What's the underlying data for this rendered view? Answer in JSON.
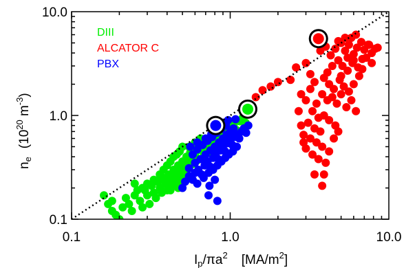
{
  "chart_data": {
    "type": "scatter",
    "x_scale": "log",
    "y_scale": "log",
    "xlim": [
      0.1,
      10.0
    ],
    "ylim": [
      0.1,
      10.0
    ],
    "x_ticks": [
      {
        "value": 0.1,
        "label": "0.1"
      },
      {
        "value": 1.0,
        "label": "1.0"
      },
      {
        "value": 10.0,
        "label": "10.0"
      }
    ],
    "y_ticks": [
      {
        "value": 0.1,
        "label": "0.1"
      },
      {
        "value": 1.0,
        "label": "1.0"
      },
      {
        "value": 10.0,
        "label": "10.0"
      }
    ],
    "xlabel": {
      "base": "I",
      "sub": "p",
      "mid": "/πa",
      "sup": "2",
      "unit_open": "[MA/m",
      "unit_sup": "2",
      "unit_close": "]"
    },
    "ylabel": {
      "base": "n",
      "sub": "e",
      "unit_open": "(10",
      "unit_sup1": "20",
      "unit_mid": " m",
      "unit_sup2": "-3",
      "unit_close": ")"
    },
    "legend_placement": "top-left",
    "reference_line": {
      "style": "dotted",
      "x": [
        0.1,
        10.0
      ],
      "y": [
        0.1,
        10.0
      ]
    },
    "series": [
      {
        "name": "DIII",
        "color": "#00ee00",
        "points": [
          [
            0.16,
            0.17
          ],
          [
            0.17,
            0.14
          ],
          [
            0.18,
            0.12
          ],
          [
            0.19,
            0.11
          ],
          [
            0.2,
            0.1
          ],
          [
            0.18,
            0.15
          ],
          [
            0.21,
            0.13
          ],
          [
            0.22,
            0.16
          ],
          [
            0.23,
            0.14
          ],
          [
            0.24,
            0.12
          ],
          [
            0.25,
            0.17
          ],
          [
            0.27,
            0.15
          ],
          [
            0.28,
            0.13
          ],
          [
            0.29,
            0.19
          ],
          [
            0.3,
            0.17
          ],
          [
            0.31,
            0.14
          ],
          [
            0.32,
            0.21
          ],
          [
            0.33,
            0.18
          ],
          [
            0.34,
            0.16
          ],
          [
            0.35,
            0.23
          ],
          [
            0.36,
            0.2
          ],
          [
            0.37,
            0.18
          ],
          [
            0.38,
            0.25
          ],
          [
            0.39,
            0.22
          ],
          [
            0.4,
            0.19
          ],
          [
            0.41,
            0.27
          ],
          [
            0.42,
            0.24
          ],
          [
            0.43,
            0.21
          ],
          [
            0.44,
            0.3
          ],
          [
            0.45,
            0.26
          ],
          [
            0.46,
            0.23
          ],
          [
            0.47,
            0.33
          ],
          [
            0.48,
            0.29
          ],
          [
            0.49,
            0.25
          ],
          [
            0.5,
            0.36
          ],
          [
            0.51,
            0.32
          ],
          [
            0.52,
            0.28
          ],
          [
            0.53,
            0.4
          ],
          [
            0.54,
            0.35
          ],
          [
            0.55,
            0.31
          ],
          [
            0.56,
            0.44
          ],
          [
            0.57,
            0.38
          ],
          [
            0.58,
            0.34
          ],
          [
            0.59,
            0.48
          ],
          [
            0.6,
            0.42
          ],
          [
            0.62,
            0.37
          ],
          [
            0.64,
            0.52
          ],
          [
            0.66,
            0.46
          ],
          [
            0.68,
            0.4
          ],
          [
            0.7,
            0.56
          ],
          [
            0.72,
            0.5
          ],
          [
            0.74,
            0.44
          ],
          [
            0.76,
            0.6
          ],
          [
            0.78,
            0.54
          ],
          [
            0.8,
            0.48
          ],
          [
            0.82,
            0.65
          ],
          [
            0.84,
            0.58
          ],
          [
            0.86,
            0.52
          ],
          [
            0.88,
            0.7
          ],
          [
            0.9,
            0.63
          ],
          [
            0.92,
            0.57
          ],
          [
            0.95,
            0.75
          ],
          [
            0.98,
            0.68
          ],
          [
            1.0,
            0.6
          ],
          [
            1.05,
            0.8
          ],
          [
            1.1,
            0.72
          ],
          [
            1.15,
            0.88
          ],
          [
            1.2,
            0.95
          ],
          [
            1.25,
            0.85
          ],
          [
            0.36,
            0.27
          ],
          [
            0.38,
            0.3
          ],
          [
            0.4,
            0.33
          ],
          [
            0.42,
            0.36
          ],
          [
            0.44,
            0.4
          ],
          [
            0.46,
            0.42
          ],
          [
            0.48,
            0.45
          ],
          [
            0.5,
            0.5
          ],
          [
            0.45,
            0.21
          ],
          [
            0.42,
            0.19
          ],
          [
            0.47,
            0.2
          ],
          [
            0.5,
            0.22
          ],
          [
            0.53,
            0.24
          ],
          [
            0.33,
            0.24
          ],
          [
            0.3,
            0.22
          ],
          [
            0.28,
            0.2
          ],
          [
            0.26,
            0.19
          ],
          [
            0.25,
            0.22
          ],
          [
            0.55,
            0.5
          ],
          [
            0.6,
            0.55
          ],
          [
            0.65,
            0.6
          ]
        ],
        "highlight": [
          1.29,
          1.15
        ]
      },
      {
        "name": "ALCATOR C",
        "color": "#ff0000",
        "points": [
          [
            3.7,
            4.2
          ],
          [
            4.0,
            4.6
          ],
          [
            4.3,
            3.8
          ],
          [
            4.6,
            4.4
          ],
          [
            5.0,
            5.0
          ],
          [
            5.3,
            4.2
          ],
          [
            5.6,
            4.8
          ],
          [
            6.0,
            3.9
          ],
          [
            6.3,
            4.5
          ],
          [
            6.7,
            5.1
          ],
          [
            7.0,
            4.3
          ],
          [
            7.4,
            4.8
          ],
          [
            7.8,
            4.0
          ],
          [
            8.2,
            4.4
          ],
          [
            5.8,
            5.6
          ],
          [
            6.2,
            6.0
          ],
          [
            4.8,
            3.4
          ],
          [
            5.1,
            3.0
          ],
          [
            5.5,
            2.7
          ],
          [
            5.9,
            3.2
          ],
          [
            6.4,
            2.9
          ],
          [
            6.8,
            3.5
          ],
          [
            4.4,
            3.0
          ],
          [
            4.1,
            2.6
          ],
          [
            3.9,
            2.3
          ],
          [
            4.2,
            2.0
          ],
          [
            4.5,
            1.8
          ],
          [
            4.9,
            2.2
          ],
          [
            5.2,
            1.9
          ],
          [
            5.6,
            1.7
          ],
          [
            6.0,
            2.0
          ],
          [
            6.5,
            2.4
          ],
          [
            3.8,
            1.6
          ],
          [
            4.1,
            1.4
          ],
          [
            4.4,
            1.5
          ],
          [
            4.7,
            1.3
          ],
          [
            5.0,
            1.6
          ],
          [
            5.4,
            1.2
          ],
          [
            5.8,
            1.4
          ],
          [
            6.2,
            1.1
          ],
          [
            3.5,
            1.3
          ],
          [
            3.3,
            1.1
          ],
          [
            3.6,
            0.95
          ],
          [
            3.9,
            1.0
          ],
          [
            4.2,
            0.9
          ],
          [
            4.6,
            0.8
          ],
          [
            3.1,
            0.85
          ],
          [
            3.4,
            0.75
          ],
          [
            3.7,
            0.7
          ],
          [
            2.9,
            0.65
          ],
          [
            3.2,
            0.6
          ],
          [
            3.5,
            0.55
          ],
          [
            3.8,
            0.5
          ],
          [
            4.2,
            0.45
          ],
          [
            3.0,
            0.48
          ],
          [
            3.3,
            0.42
          ],
          [
            3.6,
            0.38
          ],
          [
            4.0,
            0.35
          ],
          [
            2.8,
            0.8
          ],
          [
            2.7,
            1.1
          ],
          [
            3.0,
            1.4
          ],
          [
            2.9,
            0.55
          ],
          [
            4.5,
            0.6
          ],
          [
            4.8,
            0.7
          ],
          [
            3.4,
            0.27
          ],
          [
            3.9,
            0.27
          ],
          [
            3.8,
            0.21
          ],
          [
            2.4,
            2.2
          ],
          [
            2.0,
            2.1
          ],
          [
            1.8,
            1.9
          ],
          [
            1.6,
            1.75
          ],
          [
            1.45,
            1.5
          ],
          [
            2.6,
            2.9
          ],
          [
            3.0,
            3.2
          ],
          [
            3.2,
            2.5
          ],
          [
            4.8,
            5.2
          ],
          [
            5.3,
            5.6
          ],
          [
            7.2,
            3.6
          ],
          [
            7.8,
            3.2
          ],
          [
            6.8,
            2.8
          ],
          [
            3.2,
            1.8
          ],
          [
            2.8,
            1.6
          ],
          [
            3.4,
            2.1
          ],
          [
            5.5,
            3.6
          ],
          [
            6.0,
            3.4
          ],
          [
            7.5,
            4.8
          ],
          [
            8.5,
            4.5
          ],
          [
            5.0,
            2.4
          ]
        ],
        "highlight": [
          3.6,
          5.5
        ]
      },
      {
        "name": "PBX",
        "color": "#0000ff",
        "points": [
          [
            0.5,
            0.2
          ],
          [
            0.52,
            0.23
          ],
          [
            0.55,
            0.26
          ],
          [
            0.58,
            0.24
          ],
          [
            0.6,
            0.28
          ],
          [
            0.63,
            0.3
          ],
          [
            0.66,
            0.27
          ],
          [
            0.69,
            0.33
          ],
          [
            0.72,
            0.36
          ],
          [
            0.75,
            0.32
          ],
          [
            0.78,
            0.39
          ],
          [
            0.81,
            0.42
          ],
          [
            0.84,
            0.38
          ],
          [
            0.87,
            0.46
          ],
          [
            0.9,
            0.5
          ],
          [
            0.93,
            0.45
          ],
          [
            0.96,
            0.54
          ],
          [
            1.0,
            0.58
          ],
          [
            1.03,
            0.52
          ],
          [
            1.06,
            0.62
          ],
          [
            1.1,
            0.66
          ],
          [
            1.14,
            0.6
          ],
          [
            1.18,
            0.7
          ],
          [
            1.22,
            0.75
          ],
          [
            1.26,
            0.68
          ],
          [
            1.3,
            0.8
          ],
          [
            0.55,
            0.31
          ],
          [
            0.6,
            0.35
          ],
          [
            0.65,
            0.38
          ],
          [
            0.7,
            0.42
          ],
          [
            0.75,
            0.46
          ],
          [
            0.8,
            0.5
          ],
          [
            0.85,
            0.55
          ],
          [
            0.9,
            0.6
          ],
          [
            0.95,
            0.65
          ],
          [
            1.0,
            0.7
          ],
          [
            1.05,
            0.75
          ],
          [
            0.58,
            0.42
          ],
          [
            0.62,
            0.47
          ],
          [
            0.67,
            0.52
          ],
          [
            0.72,
            0.57
          ],
          [
            0.77,
            0.62
          ],
          [
            0.82,
            0.68
          ],
          [
            0.88,
            0.74
          ],
          [
            0.94,
            0.8
          ],
          [
            0.68,
            0.25
          ],
          [
            0.73,
            0.28
          ],
          [
            0.78,
            0.3
          ],
          [
            0.83,
            0.33
          ],
          [
            0.88,
            0.36
          ],
          [
            0.93,
            0.39
          ],
          [
            0.98,
            0.42
          ],
          [
            1.04,
            0.45
          ],
          [
            1.1,
            0.5
          ],
          [
            0.7,
            0.6
          ],
          [
            0.76,
            0.66
          ],
          [
            0.82,
            0.72
          ],
          [
            0.9,
            0.85
          ],
          [
            0.97,
            0.9
          ],
          [
            1.08,
            0.92
          ],
          [
            0.62,
            0.22
          ],
          [
            0.74,
            0.21
          ],
          [
            0.8,
            0.24
          ],
          [
            0.62,
            0.55
          ],
          [
            0.56,
            0.5
          ],
          [
            0.73,
            0.17
          ],
          [
            0.83,
            0.15
          ]
        ],
        "highlight": [
          0.81,
          0.8
        ]
      }
    ]
  }
}
